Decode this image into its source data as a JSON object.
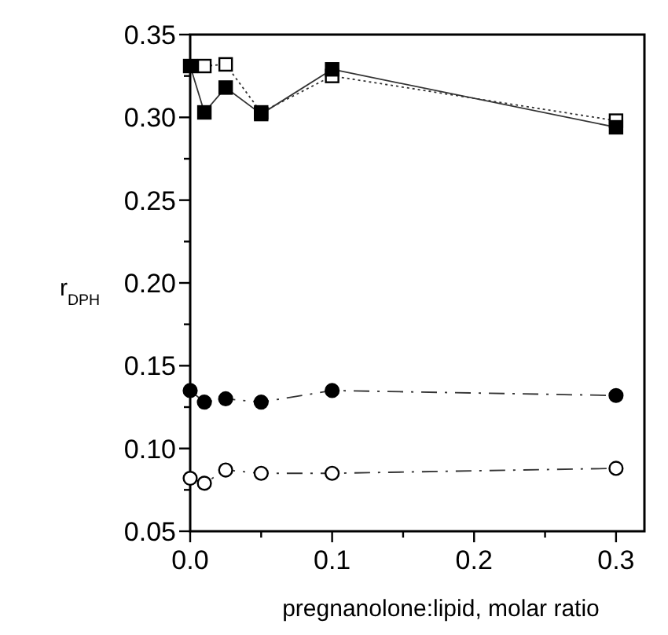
{
  "chart_data": {
    "type": "line",
    "xlabel": "pregnanolone:lipid, molar ratio",
    "ylabel": "r$_{DPH}$",
    "x": [
      0,
      0.01,
      0.025,
      0.05,
      0.1,
      0.3
    ],
    "xlim": [
      0,
      0.32
    ],
    "ylim": [
      0.05,
      0.35
    ],
    "xticks": [
      {
        "value": 0,
        "label": "0.0"
      },
      {
        "value": 0.05,
        "label": null
      },
      {
        "value": 0.1,
        "label": "0.1"
      },
      {
        "value": 0.15,
        "label": null
      },
      {
        "value": 0.2,
        "label": "0.2"
      },
      {
        "value": 0.25,
        "label": null
      },
      {
        "value": 0.3,
        "label": "0.3"
      }
    ],
    "yticks": [
      0.05,
      {
        "value": 0.075,
        "label": null
      },
      {
        "value": 0.1,
        "label": "0.10"
      },
      {
        "value": 0.125,
        "label": null
      },
      0.15,
      {
        "value": 0.175,
        "label": null
      },
      {
        "value": 0.2,
        "label": "0.20"
      },
      {
        "value": 0.225,
        "label": null
      },
      0.25,
      {
        "value": 0.275,
        "label": null
      },
      {
        "value": 0.3,
        "label": "0.30"
      },
      {
        "value": 0.325,
        "label": null
      },
      0.35
    ],
    "series": [
      {
        "color": "#ffffff",
        "marker": "square",
        "line_style": "dotted",
        "values": [
          null,
          0.331,
          0.332,
          0.303,
          0.325,
          0.298
        ]
      },
      {
        "color": "#000000",
        "marker": "square",
        "line_style": "solid",
        "values": [
          0.331,
          0.303,
          0.318,
          0.302,
          0.329,
          0.294
        ]
      },
      {
        "color": "#000000",
        "marker": "circle",
        "line_style": "dashed",
        "values": [
          0.135,
          0.128,
          0.13,
          0.128,
          0.135,
          0.132
        ]
      },
      {
        "color": "#ffffff",
        "marker": "circle",
        "line_style": "dashed",
        "values": [
          0.082,
          0.079,
          0.087,
          0.085,
          0.085,
          0.088
        ]
      }
    ]
  }
}
